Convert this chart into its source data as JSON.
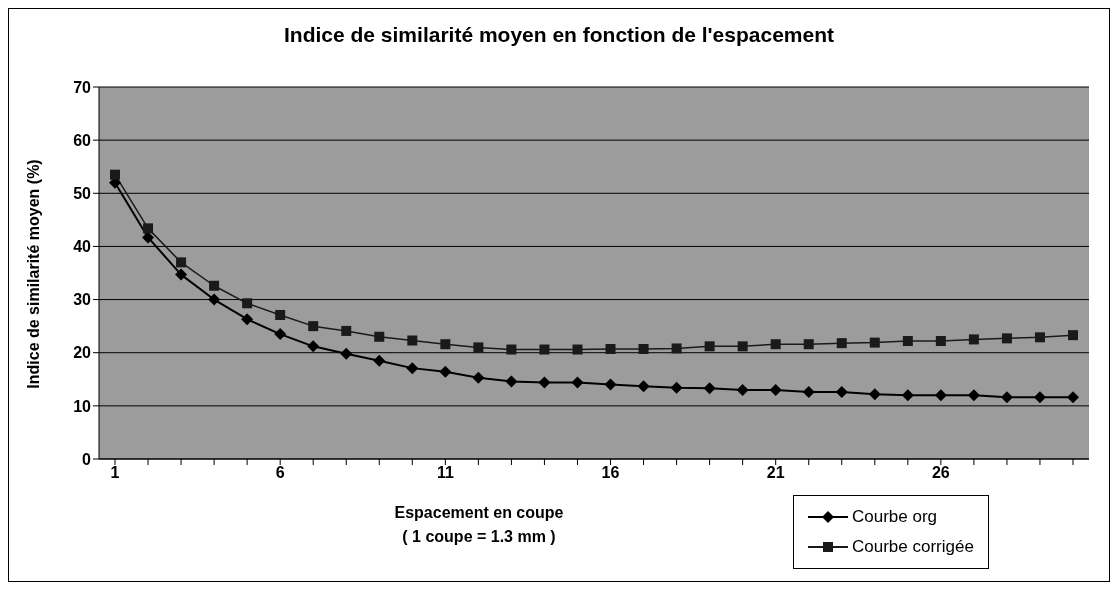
{
  "chart_data": {
    "type": "line",
    "title": "Indice de similarité moyen en fonction de l'espacement",
    "xlabel": "Espacement en coupe\n( 1 coupe = 1.3 mm )",
    "ylabel": "Indice de similarité moyen (%)",
    "categories": [
      "1",
      null,
      null,
      null,
      null,
      "6",
      null,
      null,
      null,
      null,
      "11",
      null,
      null,
      null,
      null,
      "16",
      null,
      null,
      null,
      null,
      "21",
      null,
      null,
      null,
      null,
      "26",
      null,
      null,
      null,
      null
    ],
    "series": [
      {
        "name": "Courbe org",
        "color": "#000000",
        "marker": "diamond",
        "values": [
          52,
          41.7,
          34.7,
          30,
          26.3,
          23.5,
          21.2,
          19.8,
          18.5,
          17.1,
          16.4,
          15.3,
          14.6,
          14.4,
          14.4,
          14,
          13.7,
          13.4,
          13.3,
          13,
          13,
          12.6,
          12.6,
          12.2,
          12,
          12,
          12,
          11.6,
          11.6,
          11.6
        ]
      },
      {
        "name": "Courbe corrigée",
        "color": "#1a1a1a",
        "marker": "square",
        "values": [
          53.5,
          43.4,
          37,
          32.6,
          29.3,
          27.1,
          25,
          24.1,
          23,
          22.3,
          21.6,
          21,
          20.6,
          20.6,
          20.6,
          20.7,
          20.7,
          20.8,
          21.2,
          21.2,
          21.6,
          21.6,
          21.8,
          21.9,
          22.2,
          22.2,
          22.5,
          22.7,
          22.9,
          23.3
        ]
      }
    ],
    "ylim": [
      0,
      70
    ],
    "yticks": [
      0,
      10,
      20,
      30,
      40,
      50,
      60,
      70
    ],
    "grid": "y",
    "legend": "bottom right",
    "line_style": "solid"
  }
}
